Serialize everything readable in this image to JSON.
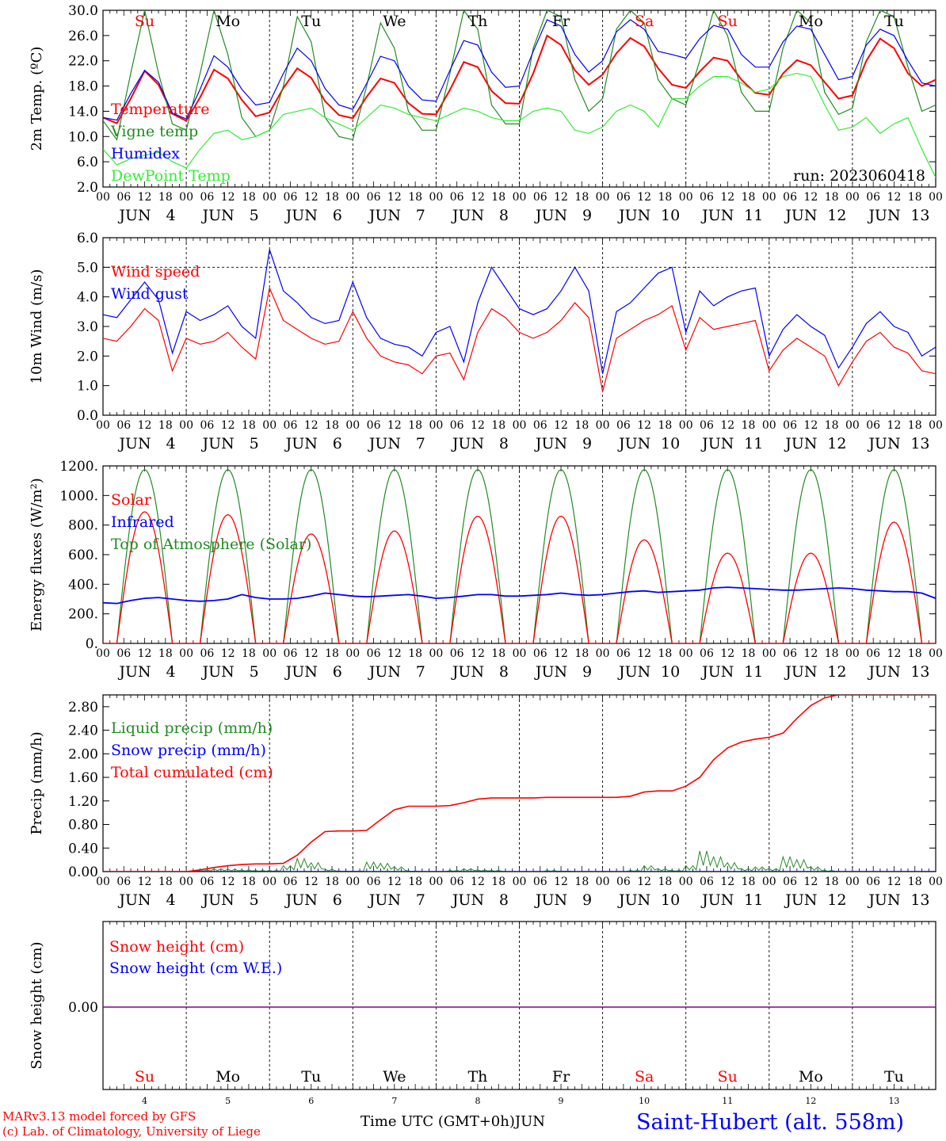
{
  "colors": {
    "temperature": "#ff0000",
    "vigne": "#228b22",
    "humidex": "#0000ff",
    "dewpoint": "#33ee33",
    "liquid": "#228b22",
    "snow_precip": "#0000ff",
    "snow_height_line": "#8b008b",
    "weekend_day": "#ff0000",
    "weekday": "#000000"
  },
  "footer": {
    "model_line": "MARv3.13 model forced by GFS",
    "lab_line": "(c) Lab. of Climatology, University of Liege",
    "time_label": "Time UTC (GMT+0h)",
    "month_label": "JUN",
    "station": "Saint-Hubert (alt. 558m)"
  },
  "chart_data": {
    "type": "line",
    "x_unit": "hours since 2023-06-04 00 UTC",
    "x_range": [
      0,
      240
    ],
    "days": [
      {
        "dow": "Su",
        "weekend": true,
        "day": "4"
      },
      {
        "dow": "Mo",
        "weekend": false,
        "day": "5"
      },
      {
        "dow": "Tu",
        "weekend": false,
        "day": "6"
      },
      {
        "dow": "We",
        "weekend": false,
        "day": "7"
      },
      {
        "dow": "Th",
        "weekend": false,
        "day": "8"
      },
      {
        "dow": "Fr",
        "weekend": false,
        "day": "9"
      },
      {
        "dow": "Sa",
        "weekend": true,
        "day": "10"
      },
      {
        "dow": "Su",
        "weekend": true,
        "day": "11"
      },
      {
        "dow": "Mo",
        "weekend": false,
        "day": "12"
      },
      {
        "dow": "Tu",
        "weekend": false,
        "day": "13"
      }
    ],
    "hour_ticks": [
      "00",
      "06",
      "12",
      "18"
    ],
    "month": "JUN",
    "panels": [
      {
        "id": "temp",
        "ylabel": "2m Temp. (ºC)",
        "ylim": [
          2.0,
          30.0
        ],
        "ytick_labels": [
          "2.0",
          "6.0",
          "10.0",
          "14.0",
          "18.0",
          "22.0",
          "26.0",
          "30.0"
        ],
        "show_dow": true,
        "run_label": "run: 2023060418",
        "series": [
          {
            "name": "Temperature",
            "color_key": "temperature",
            "values": [
              13.0,
              12.1,
              16.0,
              20.4,
              18.2,
              13.6,
              12.5,
              16.2,
              20.6,
              19.2,
              15.8,
              13.2,
              13.8,
              17.7,
              20.8,
              19.3,
              15.6,
              13.4,
              12.9,
              16.3,
              19.2,
              18.5,
              15.3,
              13.6,
              13.5,
              17.4,
              21.8,
              21.0,
              17.2,
              15.3,
              15.2,
              20.0,
              26.0,
              24.5,
              20.5,
              18.2,
              19.8,
              23.2,
              25.6,
              24.3,
              20.8,
              18.2,
              17.7,
              20.3,
              22.5,
              22.0,
              19.0,
              16.9,
              16.6,
              20.0,
              22.1,
              21.3,
              18.6,
              16.0,
              16.5,
              22.0,
              25.5,
              24.0,
              20.0,
              18.0,
              19.0
            ]
          },
          {
            "name": "Vigne temp",
            "color_key": "vigne",
            "values": [
              12.5,
              9.5,
              20.0,
              30.0,
              20.0,
              12.0,
              11.0,
              20.0,
              30.0,
              23.0,
              13.0,
              10.0,
              11.0,
              18.0,
              29.0,
              25.0,
              13.0,
              10.0,
              9.5,
              18.0,
              28.0,
              24.0,
              14.0,
              11.0,
              11.0,
              20.0,
              30.0,
              27.0,
              15.0,
              12.0,
              12.0,
              24.0,
              30.0,
              29.0,
              19.0,
              14.0,
              16.0,
              27.0,
              30.0,
              28.0,
              19.0,
              16.0,
              15.0,
              22.0,
              30.0,
              26.0,
              17.0,
              14.0,
              14.0,
              24.0,
              30.0,
              28.0,
              17.0,
              13.5,
              14.5,
              25.0,
              30.0,
              29.0,
              21.0,
              14.0,
              15.0
            ]
          },
          {
            "name": "Humidex",
            "color_key": "humidex",
            "values": [
              13.0,
              12.6,
              16.8,
              20.5,
              18.6,
              13.7,
              12.8,
              17.5,
              22.8,
              21.0,
              17.5,
              15.0,
              15.4,
              20.0,
              24.0,
              22.0,
              17.6,
              15.0,
              14.3,
              18.4,
              22.7,
              22.0,
              18.0,
              15.8,
              15.6,
              20.5,
              25.2,
              24.5,
              20.2,
              17.8,
              18.0,
              23.5,
              28.5,
              27.5,
              23.0,
              20.2,
              22.0,
              26.6,
              28.5,
              27.0,
              23.5,
              23.0,
              22.4,
              25.5,
              27.6,
              27.0,
              23.0,
              21.0,
              21.0,
              25.0,
              27.5,
              27.0,
              23.0,
              19.0,
              19.5,
              24.5,
              27.0,
              26.0,
              22.0,
              18.5,
              18.0
            ]
          },
          {
            "name": "DewPoint Temp",
            "color_key": "dewpoint",
            "values": [
              8.0,
              5.5,
              6.5,
              7.0,
              7.5,
              6.0,
              5.0,
              8.0,
              10.5,
              11.0,
              9.5,
              10.0,
              11.0,
              13.5,
              14.0,
              14.5,
              13.0,
              12.0,
              11.0,
              13.0,
              15.0,
              14.5,
              13.5,
              13.0,
              12.5,
              13.5,
              14.5,
              14.0,
              13.0,
              12.5,
              12.5,
              14.0,
              14.5,
              14.0,
              11.0,
              10.5,
              11.5,
              14.0,
              15.0,
              14.0,
              11.5,
              16.0,
              16.0,
              18.0,
              19.5,
              19.5,
              18.5,
              17.0,
              17.5,
              19.5,
              20.0,
              19.5,
              15.0,
              11.0,
              11.5,
              13.0,
              10.5,
              12.0,
              13.0,
              8.0,
              3.5
            ]
          }
        ]
      },
      {
        "id": "wind",
        "ylabel": "10m Wind (m/s)",
        "ylim": [
          0.0,
          6.0
        ],
        "ytick_labels": [
          "0.0",
          "1.0",
          "2.0",
          "3.0",
          "4.0",
          "5.0",
          "6.0"
        ],
        "ref_line": 5.0,
        "show_dow": false,
        "series": [
          {
            "name": "Wind speed",
            "color_key": "temperature",
            "values": [
              2.6,
              2.5,
              3.0,
              3.6,
              3.2,
              1.5,
              2.6,
              2.4,
              2.5,
              2.8,
              2.3,
              1.9,
              4.3,
              3.2,
              2.9,
              2.6,
              2.4,
              2.5,
              3.5,
              2.6,
              2.0,
              1.8,
              1.7,
              1.4,
              2.0,
              2.1,
              1.2,
              2.8,
              3.6,
              3.3,
              2.8,
              2.6,
              2.8,
              3.2,
              3.8,
              3.3,
              0.8,
              2.6,
              2.9,
              3.2,
              3.4,
              3.7,
              2.2,
              3.3,
              2.9,
              3.0,
              3.1,
              3.2,
              1.5,
              2.2,
              2.6,
              2.3,
              2.0,
              1.0,
              1.8,
              2.5,
              2.8,
              2.3,
              2.1,
              1.5,
              1.4
            ]
          },
          {
            "name": "Wind gust",
            "color_key": "humidex",
            "values": [
              3.4,
              3.3,
              3.9,
              4.5,
              3.9,
              2.1,
              3.5,
              3.2,
              3.4,
              3.7,
              3.0,
              2.6,
              5.6,
              4.2,
              3.8,
              3.3,
              3.1,
              3.2,
              4.5,
              3.3,
              2.6,
              2.4,
              2.3,
              2.0,
              2.8,
              3.0,
              1.8,
              3.8,
              5.0,
              4.3,
              3.6,
              3.4,
              3.6,
              4.2,
              5.0,
              4.2,
              1.4,
              3.5,
              3.8,
              4.3,
              4.8,
              5.0,
              2.8,
              4.2,
              3.7,
              4.0,
              4.2,
              4.3,
              2.0,
              2.9,
              3.4,
              3.0,
              2.7,
              1.6,
              2.3,
              3.1,
              3.5,
              3.0,
              2.8,
              2.0,
              2.3
            ]
          }
        ]
      },
      {
        "id": "energy",
        "ylabel": "Energy fluxes (W/m²)",
        "ylim": [
          0,
          1200
        ],
        "ytick_labels": [
          "0.",
          "200.",
          "400.",
          "600.",
          "800.",
          "1000.",
          "1200."
        ],
        "show_dow": false,
        "solar_peaks": [
          890,
          870,
          740,
          760,
          860,
          860,
          700,
          610,
          610,
          820
        ],
        "toa_peak": 1175,
        "daylight_hours": [
          4,
          20
        ],
        "infrared": [
          275,
          270,
          290,
          305,
          310,
          300,
          290,
          285,
          290,
          300,
          330,
          310,
          300,
          300,
          305,
          320,
          340,
          330,
          320,
          315,
          320,
          325,
          330,
          320,
          305,
          310,
          320,
          330,
          330,
          320,
          320,
          325,
          330,
          340,
          330,
          325,
          330,
          340,
          350,
          355,
          345,
          350,
          355,
          360,
          375,
          380,
          375,
          370,
          365,
          360,
          360,
          365,
          370,
          375,
          370,
          360,
          355,
          350,
          350,
          340,
          305
        ],
        "series": [
          {
            "name": "Solar",
            "color_key": "temperature"
          },
          {
            "name": "Infrared",
            "color_key": "humidex"
          },
          {
            "name": "Top of Atmosphere (Solar)",
            "color_key": "vigne"
          }
        ]
      },
      {
        "id": "precip",
        "ylabel": "Precip (mm/h)",
        "ylim": [
          0.0,
          3.0
        ],
        "ytick_labels": [
          "0.00",
          "0.40",
          "0.80",
          "1.20",
          "1.60",
          "2.00",
          "2.40",
          "2.80"
        ],
        "show_dow": false,
        "cumulated": [
          0.0,
          0.0,
          0.0,
          0.0,
          0.0,
          0.0,
          0.0,
          0.03,
          0.07,
          0.1,
          0.12,
          0.13,
          0.13,
          0.14,
          0.28,
          0.5,
          0.68,
          0.69,
          0.69,
          0.7,
          0.88,
          1.05,
          1.11,
          1.11,
          1.11,
          1.12,
          1.17,
          1.23,
          1.25,
          1.25,
          1.25,
          1.25,
          1.26,
          1.26,
          1.26,
          1.26,
          1.26,
          1.26,
          1.28,
          1.35,
          1.37,
          1.37,
          1.45,
          1.6,
          1.9,
          2.1,
          2.2,
          2.25,
          2.28,
          2.35,
          2.6,
          2.82,
          2.95,
          3.0,
          3.0,
          3.0,
          3.0,
          3.0,
          3.0,
          3.0,
          3.0
        ],
        "liquid": [
          0,
          0,
          0,
          0,
          0,
          0,
          0,
          0.03,
          0.05,
          0.04,
          0.03,
          0.02,
          0.02,
          0.1,
          0.22,
          0.15,
          0.04,
          0.01,
          0.01,
          0.16,
          0.14,
          0.08,
          0.01,
          0,
          0,
          0.02,
          0.05,
          0.03,
          0.02,
          0,
          0,
          0,
          0.02,
          0.01,
          0,
          0,
          0,
          0,
          0.02,
          0.1,
          0.05,
          0.02,
          0.1,
          0.35,
          0.25,
          0.15,
          0.05,
          0.08,
          0.05,
          0.25,
          0.2,
          0.08,
          0.02,
          0,
          0,
          0,
          0,
          0,
          0,
          0,
          0
        ],
        "series": [
          {
            "name": "Liquid precip (mm/h)",
            "color_key": "liquid"
          },
          {
            "name": "Snow precip (mm/h)",
            "color_key": "snow_precip"
          },
          {
            "name": "Total cumulated (cm)",
            "color_key": "temperature"
          }
        ]
      },
      {
        "id": "snow",
        "ylabel": "Snow height (cm)",
        "ytick_labels": [
          "0.00"
        ],
        "show_dow": false,
        "value": 0.0,
        "series": [
          {
            "name": "Snow height (cm)",
            "color_key": "temperature"
          },
          {
            "name": "Snow height (cm W.E.)",
            "color_key": "humidex"
          }
        ]
      }
    ]
  }
}
